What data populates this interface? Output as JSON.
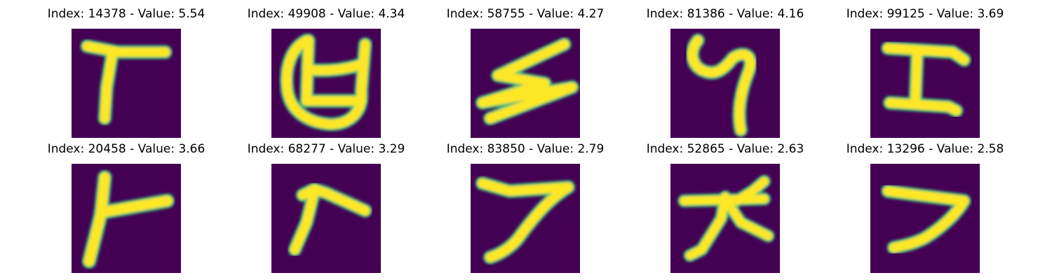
{
  "colors": {
    "background": "#440154",
    "stroke_yellow": "#fde725",
    "stroke_green": "#3fbc73",
    "stroke_teal": "#21918c"
  },
  "panels": [
    {
      "title": "Index: 14378 - Value: 5.54",
      "glyph": "character-t-shape"
    },
    {
      "title": "Index: 49908 - Value: 4.34",
      "glyph": "character-looped-u-bar"
    },
    {
      "title": "Index: 58755 - Value: 4.27",
      "glyph": "character-zigzag"
    },
    {
      "title": "Index: 81386 - Value: 4.16",
      "glyph": "character-curled-hook"
    },
    {
      "title": "Index: 99125 - Value: 3.69",
      "glyph": "character-capital-i"
    },
    {
      "title": "Index: 20458 - Value: 3.66",
      "glyph": "character-vertical-with-arm"
    },
    {
      "title": "Index: 68277 - Value: 3.29",
      "glyph": "character-bent-arm"
    },
    {
      "title": "Index: 83850 - Value: 2.79",
      "glyph": "character-seven-shape"
    },
    {
      "title": "Index: 52865 - Value: 2.63",
      "glyph": "character-da-shape"
    },
    {
      "title": "Index: 13296 - Value: 2.58",
      "glyph": "character-hook-seven"
    }
  ]
}
